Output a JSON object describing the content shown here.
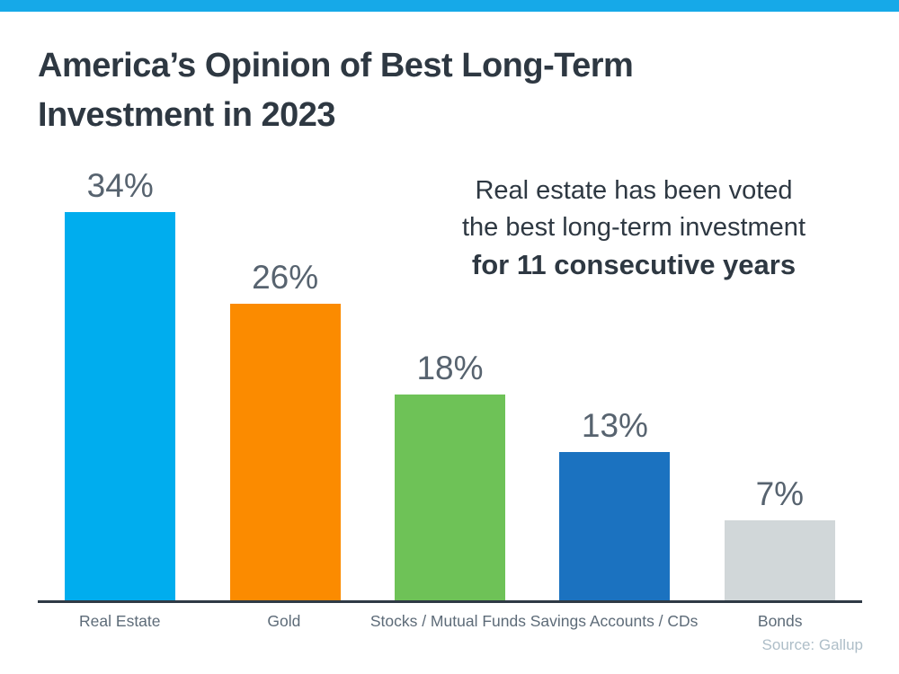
{
  "page": {
    "title_line1": "America’s Opinion of Best Long-Term",
    "title_line2": "Investment in 2023",
    "source": "Source: Gallup",
    "accent_color": "#16A9E8"
  },
  "annotation": {
    "line1": "Real estate has been voted",
    "line2": "the best long-term investment",
    "line3": "for 11 consecutive years"
  },
  "chart_data": {
    "type": "bar",
    "title": "America’s Opinion of Best Long-Term Investment in 2023",
    "categories": [
      "Real Estate",
      "Gold",
      "Stocks / Mutual Funds",
      "Savings Accounts / CDs",
      "Bonds"
    ],
    "values": [
      34,
      26,
      18,
      13,
      7
    ],
    "value_labels": [
      "34%",
      "26%",
      "18%",
      "13%",
      "7%"
    ],
    "bar_colors": [
      "#00ADEE",
      "#FB8B00",
      "#6EC257",
      "#1B72C0",
      "#D1D7D9"
    ],
    "value_label_color": "#57636F",
    "category_label_color": "#5D6B78",
    "axis_line_color": "#2F3A45",
    "xlabel": "",
    "ylabel": "",
    "ylim": [
      0,
      36
    ],
    "grid": false,
    "legend": false,
    "annotation": "Real estate has been voted the best long-term investment for 11 consecutive years",
    "source": "Source: Gallup"
  }
}
